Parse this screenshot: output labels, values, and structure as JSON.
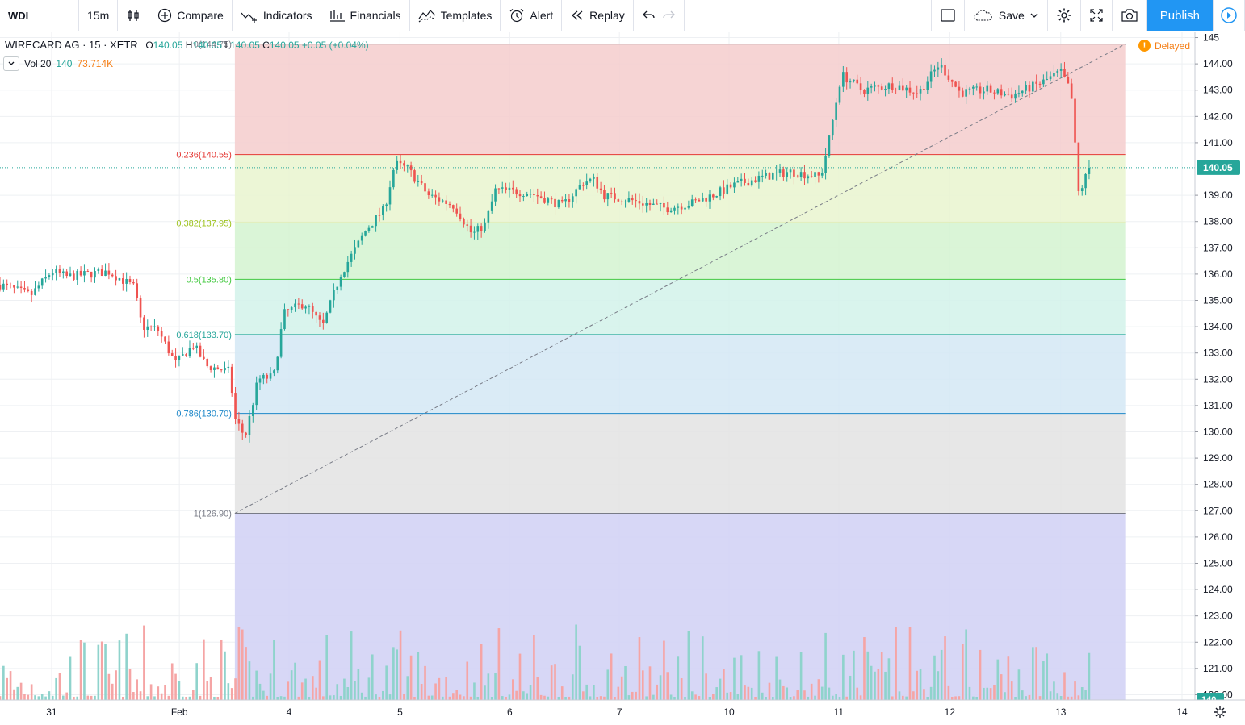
{
  "toolbar": {
    "symbol": "WDI",
    "interval": "15m",
    "compare": "Compare",
    "indicators": "Indicators",
    "financials": "Financials",
    "templates": "Templates",
    "alert": "Alert",
    "replay": "Replay",
    "save": "Save",
    "publish": "Publish"
  },
  "legend": {
    "title": "WIRECARD AG · 15 · XETR",
    "o_label": "O",
    "o": "140.05",
    "h_label": "H",
    "h": "140.05",
    "l_label": "L",
    "l": "140.05",
    "c_label": "C",
    "c": "140.05",
    "change": "+0.05 (+0.04%)",
    "vol_name": "Vol 20",
    "vol_value": "140",
    "vol_ma": "73.714K"
  },
  "status": {
    "delayed": "Delayed",
    "delayed_icon": "!"
  },
  "colors": {
    "up": "#26a69a",
    "down": "#ef5350",
    "vol_up": "#8fd3cc",
    "vol_down": "#f5a5a5",
    "last_price_bg": "#26a69a"
  },
  "chart_data": {
    "type": "candlestick",
    "y_axis": {
      "min": 119.8,
      "max": 145.2,
      "ticks": [
        "145",
        "144.00",
        "143.00",
        "142.00",
        "141.00",
        "140.00",
        "139.00",
        "138.00",
        "137.00",
        "136.00",
        "135.00",
        "134.00",
        "133.00",
        "132.00",
        "131.00",
        "130.00",
        "129.00",
        "128.00",
        "127.00",
        "126.00",
        "125.00",
        "124.00",
        "123.00",
        "122.00",
        "121.00",
        "120.00"
      ],
      "tick_values": [
        145,
        144,
        143,
        142,
        141,
        140,
        139,
        138,
        137,
        136,
        135,
        134,
        133,
        132,
        131,
        130,
        129,
        128,
        127,
        126,
        125,
        124,
        123,
        122,
        121,
        120
      ]
    },
    "x_axis": {
      "labels": [
        "31",
        "Feb",
        "4",
        "5",
        "6",
        "7",
        "10",
        "11",
        "12",
        "13",
        "14"
      ],
      "label_index": [
        2,
        6.95,
        11.2,
        15.5,
        19.75,
        24,
        28.25,
        32.5,
        36.8,
        41.1,
        45.8
      ],
      "range": [
        0,
        46.3
      ]
    },
    "last_price": "140.05",
    "last_price_value": 140.05,
    "last_volume_label": "140",
    "fibonacci": {
      "levels": [
        {
          "ratio": "0",
          "price": 144.75,
          "label": "0(144.75)",
          "color": "#787b86"
        },
        {
          "ratio": "0.236",
          "price": 140.55,
          "label": "0.236(140.55)",
          "color": "#e53935"
        },
        {
          "ratio": "0.382",
          "price": 137.95,
          "label": "0.382(137.95)",
          "color": "#9fc41f"
        },
        {
          "ratio": "0.5",
          "price": 135.8,
          "label": "0.5(135.80)",
          "color": "#43c940"
        },
        {
          "ratio": "0.618",
          "price": 133.7,
          "label": "0.618(133.70)",
          "color": "#26a69a"
        },
        {
          "ratio": "0.786",
          "price": 130.7,
          "label": "0.786(130.70)",
          "color": "#1e88c9"
        },
        {
          "ratio": "1",
          "price": 126.9,
          "label": "1(126.90)",
          "color": "#787b86"
        }
      ],
      "zone_fills": [
        "#f4cccc",
        "#e9f5cf",
        "#d4f3d0",
        "#d2f2ea",
        "#d3e7f4",
        "#e3e3e3",
        "#d3d3f5"
      ],
      "start_index": 9.1,
      "end_index": 43.6,
      "trend_start": {
        "index": 9.1,
        "price": 126.9
      },
      "trend_end": {
        "index": 43.6,
        "price": 144.75
      }
    },
    "series": [
      {
        "name": "price",
        "anchors": [
          [
            0,
            135.6
          ],
          [
            1.2,
            135.2
          ],
          [
            2,
            136.1
          ],
          [
            2.6,
            135.9
          ],
          [
            3.4,
            136.0
          ],
          [
            4.2,
            136.1
          ],
          [
            5.2,
            135.5
          ],
          [
            5.5,
            134.0
          ],
          [
            6.1,
            133.9
          ],
          [
            6.8,
            132.6
          ],
          [
            7.5,
            133.3
          ],
          [
            8,
            132.5
          ],
          [
            8.9,
            132.3
          ],
          [
            9.1,
            130.5
          ],
          [
            9.5,
            129.8
          ],
          [
            10,
            132.0
          ],
          [
            10.6,
            132.1
          ],
          [
            11.0,
            134.5
          ],
          [
            11.8,
            134.9
          ],
          [
            12.5,
            134.0
          ],
          [
            13.2,
            136.0
          ],
          [
            14.2,
            137.7
          ],
          [
            14.9,
            138.5
          ],
          [
            15.3,
            140.2
          ],
          [
            15.8,
            140.0
          ],
          [
            16.6,
            139.0
          ],
          [
            17.6,
            138.6
          ],
          [
            18.3,
            137.5
          ],
          [
            18.8,
            137.9
          ],
          [
            19.2,
            139.2
          ],
          [
            20.5,
            139.1
          ],
          [
            21.8,
            138.6
          ],
          [
            22.6,
            139.5
          ],
          [
            23.0,
            139.6
          ],
          [
            23.4,
            139.0
          ],
          [
            24.5,
            138.8
          ],
          [
            25.8,
            138.5
          ],
          [
            26.8,
            138.7
          ],
          [
            27.6,
            139.0
          ],
          [
            28.5,
            139.4
          ],
          [
            29.6,
            139.7
          ],
          [
            30.6,
            139.9
          ],
          [
            31.8,
            139.7
          ],
          [
            32.1,
            141.0
          ],
          [
            32.6,
            143.6
          ],
          [
            33.4,
            143.0
          ],
          [
            34.6,
            143.2
          ],
          [
            35.6,
            142.9
          ],
          [
            36.4,
            144.0
          ],
          [
            37.2,
            142.9
          ],
          [
            38.2,
            143.0
          ],
          [
            39.2,
            142.8
          ],
          [
            40.4,
            143.3
          ],
          [
            41.1,
            143.7
          ],
          [
            41.5,
            142.9
          ],
          [
            41.8,
            139.0
          ],
          [
            42.2,
            140.05
          ]
        ]
      },
      {
        "name": "Vol 20"
      }
    ]
  }
}
